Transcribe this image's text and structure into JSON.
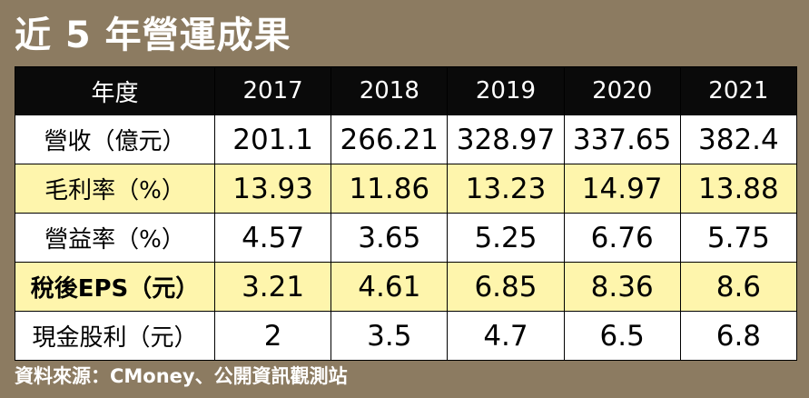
{
  "title": "近 5 年營運成果",
  "table": {
    "headers": [
      "年度",
      "2017",
      "2018",
      "2019",
      "2020",
      "2021"
    ],
    "rows": [
      {
        "label": "營收（億元）",
        "values": [
          "201.1",
          "266.21",
          "328.97",
          "337.65",
          "382.4"
        ]
      },
      {
        "label": "毛利率（%）",
        "values": [
          "13.93",
          "11.86",
          "13.23",
          "14.97",
          "13.88"
        ]
      },
      {
        "label": "營益率（%）",
        "values": [
          "4.57",
          "3.65",
          "5.25",
          "6.76",
          "5.75"
        ]
      },
      {
        "label": "稅後EPS（元）",
        "values": [
          "3.21",
          "4.61",
          "6.85",
          "8.36",
          "8.6"
        ]
      },
      {
        "label": "現金股利（元）",
        "values": [
          "2",
          "3.5",
          "4.7",
          "6.5",
          "6.8"
        ]
      }
    ]
  },
  "source": "資料來源：CMoney、公開資訊觀測站",
  "colors": {
    "background": "#8c7b61",
    "header_bg": "#0a0a0a",
    "row_yellow": "#fef5ac",
    "row_white": "#ffffff"
  }
}
